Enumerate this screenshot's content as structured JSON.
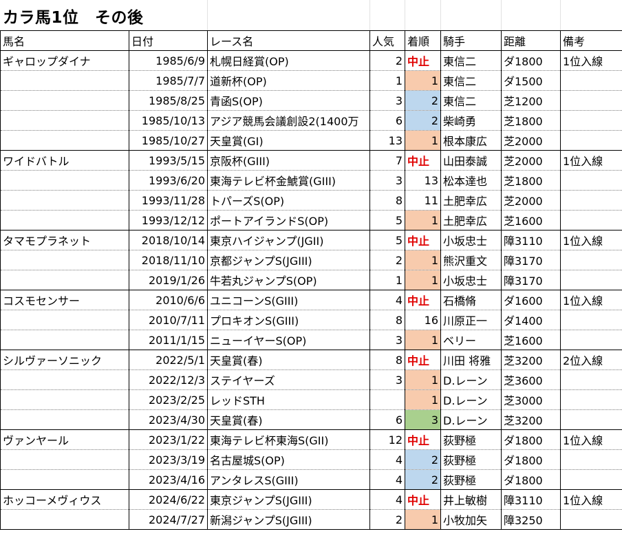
{
  "title": "カラ馬1位　その後",
  "headers": [
    "馬名",
    "日付",
    "レース名",
    "人気",
    "着順",
    "騎手",
    "距離",
    "備考"
  ],
  "rows": [
    {
      "horse": "ギャロップダイナ",
      "date": "1985/6/9",
      "race": "札幌日経賞(OP)",
      "pop": "2",
      "pos": "中止",
      "posType": "stop",
      "jockey": "東信二",
      "dist": "ダ1800",
      "note": "1位入線",
      "start": true
    },
    {
      "horse": "",
      "date": "1985/7/7",
      "race": "道新杯(OP)",
      "pop": "1",
      "pos": "1",
      "posType": "orange",
      "jockey": "東信二",
      "dist": "ダ1500",
      "note": ""
    },
    {
      "horse": "",
      "date": "1985/8/25",
      "race": "青函S(OP)",
      "pop": "3",
      "pos": "2",
      "posType": "blue",
      "jockey": "東信二",
      "dist": "芝1200",
      "note": ""
    },
    {
      "horse": "",
      "date": "1985/10/13",
      "race": "アジア競馬会議創設2(1400万",
      "pop": "6",
      "pos": "2",
      "posType": "blue",
      "jockey": "柴崎勇",
      "dist": "芝1800",
      "note": ""
    },
    {
      "horse": "",
      "date": "1985/10/27",
      "race": "天皇賞(GI)",
      "pop": "13",
      "pos": "1",
      "posType": "orange",
      "jockey": "根本康広",
      "dist": "芝2000",
      "note": ""
    },
    {
      "horse": "ワイドバトル",
      "date": "1993/5/15",
      "race": "京阪杯(GIII)",
      "pop": "7",
      "pos": "中止",
      "posType": "stop",
      "jockey": "山田泰誠",
      "dist": "芝2000",
      "note": "1位入線",
      "start": true
    },
    {
      "horse": "",
      "date": "1993/6/20",
      "race": "東海テレビ杯金鯱賞(GIII)",
      "pop": "3",
      "pos": "13",
      "posType": "none",
      "jockey": "松本達也",
      "dist": "芝1800",
      "note": ""
    },
    {
      "horse": "",
      "date": "1993/11/28",
      "race": "トパーズS(OP)",
      "pop": "8",
      "pos": "11",
      "posType": "none",
      "jockey": "土肥幸広",
      "dist": "芝2000",
      "note": ""
    },
    {
      "horse": "",
      "date": "1993/12/12",
      "race": "ポートアイランドS(OP)",
      "pop": "5",
      "pos": "1",
      "posType": "orange",
      "jockey": "土肥幸広",
      "dist": "芝1600",
      "note": ""
    },
    {
      "horse": "タマモプラネット",
      "date": "2018/10/14",
      "race": "東京ハイジャンプ(JGII)",
      "pop": "5",
      "pos": "中止",
      "posType": "stop",
      "jockey": "小坂忠士",
      "dist": "障3110",
      "note": "1位入線",
      "start": true
    },
    {
      "horse": "",
      "date": "2018/11/10",
      "race": "京都ジャンプS(JGIII)",
      "pop": "2",
      "pos": "1",
      "posType": "orange",
      "jockey": "熊沢重文",
      "dist": "障3170",
      "note": ""
    },
    {
      "horse": "",
      "date": "2019/1/26",
      "race": "牛若丸ジャンプS(OP)",
      "pop": "1",
      "pos": "1",
      "posType": "orange",
      "jockey": "小坂忠士",
      "dist": "障3170",
      "note": ""
    },
    {
      "horse": "コスモセンサー",
      "date": "2010/6/6",
      "race": "ユニコーンS(GIII)",
      "pop": "4",
      "pos": "中止",
      "posType": "stop",
      "jockey": "石橋脩",
      "dist": "ダ1600",
      "note": "1位入線",
      "start": true
    },
    {
      "horse": "",
      "date": "2010/7/11",
      "race": "プロキオンS(GIII)",
      "pop": "8",
      "pos": "16",
      "posType": "none",
      "jockey": "川原正一",
      "dist": "ダ1400",
      "note": ""
    },
    {
      "horse": "",
      "date": "2011/1/15",
      "race": "ニューイヤーS(OP)",
      "pop": "3",
      "pos": "1",
      "posType": "orange",
      "jockey": "ベリー",
      "dist": "芝1600",
      "note": ""
    },
    {
      "horse": "シルヴァーソニック",
      "date": "2022/5/1",
      "race": "天皇賞(春)",
      "pop": "8",
      "pos": "中止",
      "posType": "stop",
      "jockey": "川田 将雅",
      "dist": "芝3200",
      "note": "2位入線",
      "start": true
    },
    {
      "horse": "",
      "date": "2022/12/3",
      "race": "ステイヤーズ",
      "pop": "3",
      "pos": "1",
      "posType": "orange",
      "jockey": "D.レーン",
      "dist": "芝3600",
      "note": ""
    },
    {
      "horse": "",
      "date": "2023/2/25",
      "race": "レッドSTH",
      "pop": "",
      "pos": "1",
      "posType": "orange",
      "jockey": "D.レーン",
      "dist": "芝3000",
      "note": ""
    },
    {
      "horse": "",
      "date": "2023/4/30",
      "race": "天皇賞(春)",
      "pop": "6",
      "pos": "3",
      "posType": "green",
      "jockey": "D.レーン",
      "dist": "芝3200",
      "note": ""
    },
    {
      "horse": "ヴァンヤール",
      "date": "2023/1/22",
      "race": "東海テレビ杯東海S(GII)",
      "pop": "12",
      "pos": "中止",
      "posType": "stop",
      "jockey": "荻野極",
      "dist": "ダ1800",
      "note": "1位入線",
      "start": true
    },
    {
      "horse": "",
      "date": "2023/3/19",
      "race": "名古屋城S(OP)",
      "pop": "4",
      "pos": "2",
      "posType": "blue",
      "jockey": "荻野極",
      "dist": "ダ1800",
      "note": ""
    },
    {
      "horse": "",
      "date": "2023/4/16",
      "race": "アンタレスS(GIII)",
      "pop": "4",
      "pos": "2",
      "posType": "blue",
      "jockey": "荻野極",
      "dist": "ダ1800",
      "note": ""
    },
    {
      "horse": "ホッコーメヴィウス",
      "date": "2024/6/22",
      "race": "東京ジャンプS(JGIII)",
      "pop": "4",
      "pos": "中止",
      "posType": "stop",
      "jockey": "井上敏樹",
      "dist": "障3110",
      "note": "1位入線",
      "start": true
    },
    {
      "horse": "",
      "date": "2024/7/27",
      "race": "新潟ジャンプS(JGIII)",
      "pop": "2",
      "pos": "1",
      "posType": "orange",
      "jockey": "小牧加矢",
      "dist": "障3250",
      "note": ""
    }
  ],
  "colors": {
    "stop": "#e00000",
    "orange": "#f8cbad",
    "blue": "#bdd7ee",
    "green": "#a9d08e"
  }
}
